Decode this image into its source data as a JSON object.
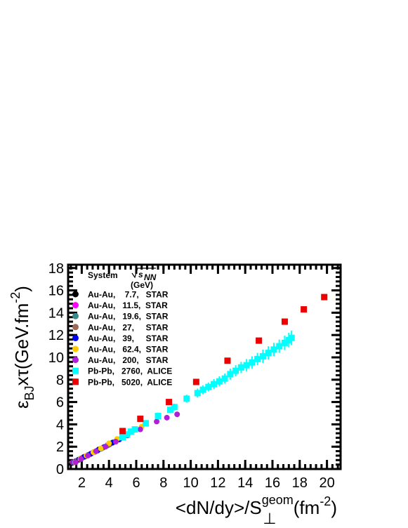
{
  "chart_data": {
    "type": "scatter",
    "xlabel": {
      "main": "<dN/dy>/S",
      "sup": "geom",
      "sub": "⊥",
      "unit": "(fm",
      "unit_sup": "-2",
      "unit_end": ")"
    },
    "ylabel": {
      "eps": "ε",
      "sub": "BJ",
      "mid": "xτ(GeV.fm",
      "sup": "-2",
      "end": ")"
    },
    "xlim": [
      1,
      21
    ],
    "ylim": [
      0,
      18.3
    ],
    "x_ticks": [
      2,
      4,
      6,
      8,
      10,
      12,
      14,
      16,
      18,
      20
    ],
    "y_ticks": [
      0,
      2,
      4,
      6,
      8,
      10,
      12,
      14,
      16,
      18
    ],
    "x_tick_labels": [
      "2",
      "4",
      "6",
      "8",
      "10",
      "12",
      "14",
      "16",
      "18",
      "20"
    ],
    "y_tick_labels": [
      "0",
      "2",
      "4",
      "6",
      "8",
      "10",
      "12",
      "14",
      "16",
      "18"
    ],
    "legend": {
      "placement": "top-left",
      "header_system": "System",
      "header_sqrt": "√",
      "header_s": "s",
      "header_nn": "NN",
      "header_unit": "(GeV)"
    },
    "series": [
      {
        "label": "Au-Au,    7.7,   STAR",
        "color": "#000000",
        "marker": "circle",
        "x": [
          1.3,
          1.55,
          1.8,
          2.1,
          2.45,
          2.85,
          3.25
        ],
        "y": [
          0.55,
          0.7,
          0.85,
          1.05,
          1.25,
          1.5,
          1.75
        ]
      },
      {
        "label": "Au-Au,   11.5,  STAR",
        "color": "#ff00ff",
        "marker": "circle",
        "x": [
          1.35,
          1.65,
          1.95,
          2.3,
          2.7,
          3.15,
          3.6,
          3.9
        ],
        "y": [
          0.6,
          0.75,
          0.95,
          1.15,
          1.4,
          1.65,
          1.95,
          2.15
        ]
      },
      {
        "label": "Au-Au,   19.6,  STAR",
        "color": "#3b8a8a",
        "marker": "circle",
        "x": [
          1.4,
          1.7,
          2.05,
          2.45,
          2.9,
          3.4,
          3.9,
          4.3
        ],
        "y": [
          0.6,
          0.8,
          1.0,
          1.25,
          1.5,
          1.8,
          2.1,
          2.4
        ]
      },
      {
        "label": "Au-Au,   27,     STAR",
        "color": "#9b6b5a",
        "marker": "circle",
        "x": [
          1.45,
          1.75,
          2.1,
          2.55,
          3.0,
          3.55,
          4.05,
          4.5
        ],
        "y": [
          0.6,
          0.8,
          1.05,
          1.3,
          1.55,
          1.9,
          2.2,
          2.5
        ]
      },
      {
        "label": "Au-Au,   39,     STAR",
        "color": "#0000ee",
        "marker": "circle",
        "x": [
          1.45,
          1.8,
          2.2,
          2.65,
          3.15,
          3.7,
          4.25,
          4.75
        ],
        "y": [
          0.6,
          0.85,
          1.1,
          1.35,
          1.65,
          2.0,
          2.35,
          2.65
        ]
      },
      {
        "label": "Au-Au,   62.4,  STAR",
        "color": "#ffcc00",
        "marker": "circle",
        "x": [
          1.5,
          1.9,
          2.35,
          2.85,
          3.4,
          4.0,
          4.6,
          5.2,
          5.8,
          6.4
        ],
        "y": [
          0.6,
          0.9,
          1.2,
          1.5,
          1.85,
          2.3,
          2.7,
          3.05,
          3.45,
          3.8
        ]
      },
      {
        "label": "Au-Au,   200,   STAR",
        "color": "#b11fd8",
        "marker": "circle",
        "x": [
          1.55,
          1.95,
          2.45,
          3.05,
          3.75,
          4.5,
          5.35,
          6.3,
          7.5,
          8.25,
          9.0
        ],
        "y": [
          0.6,
          0.9,
          1.2,
          1.6,
          2.0,
          2.45,
          3.0,
          3.55,
          4.25,
          4.6,
          4.9
        ]
      },
      {
        "label": "Pb-Pb,   2760,  ALICE",
        "color": "#00ffff",
        "marker": "square",
        "x": [
          5.0,
          5.3,
          5.6,
          5.9,
          6.7,
          7.6,
          8.5,
          8.8,
          9.7,
          10.5,
          10.9,
          11.3,
          11.7,
          12.1,
          12.5,
          12.9,
          13.3,
          13.7,
          14.1,
          14.5,
          14.9,
          15.3,
          15.7,
          16.1,
          16.5,
          16.9,
          17.2,
          17.4
        ],
        "y": [
          2.85,
          3.1,
          3.35,
          3.55,
          4.1,
          4.75,
          5.3,
          5.55,
          6.3,
          6.8,
          7.1,
          7.35,
          7.6,
          7.85,
          8.1,
          8.5,
          8.8,
          9.1,
          9.3,
          9.55,
          9.85,
          10.1,
          10.4,
          10.7,
          11.0,
          11.3,
          11.55,
          11.75
        ],
        "yerr": [
          0.2,
          0.2,
          0.2,
          0.25,
          0.25,
          0.3,
          0.3,
          0.3,
          0.35,
          0.4,
          0.4,
          0.4,
          0.45,
          0.45,
          0.45,
          0.5,
          0.5,
          0.5,
          0.55,
          0.55,
          0.55,
          0.6,
          0.6,
          0.6,
          0.6,
          0.65,
          0.65,
          0.65
        ]
      },
      {
        "label": "Pb-Pb,   5020,  ALICE",
        "color": "#ee0000",
        "marker": "square",
        "x": [
          5.0,
          6.3,
          8.4,
          10.4,
          12.7,
          15.0,
          16.9,
          18.3,
          19.8
        ],
        "y": [
          3.4,
          4.5,
          6.0,
          7.8,
          9.7,
          11.5,
          13.2,
          14.3,
          15.4
        ]
      }
    ],
    "grid": false
  },
  "colors": {
    "axis": "#000000",
    "background": "#ffffff"
  }
}
